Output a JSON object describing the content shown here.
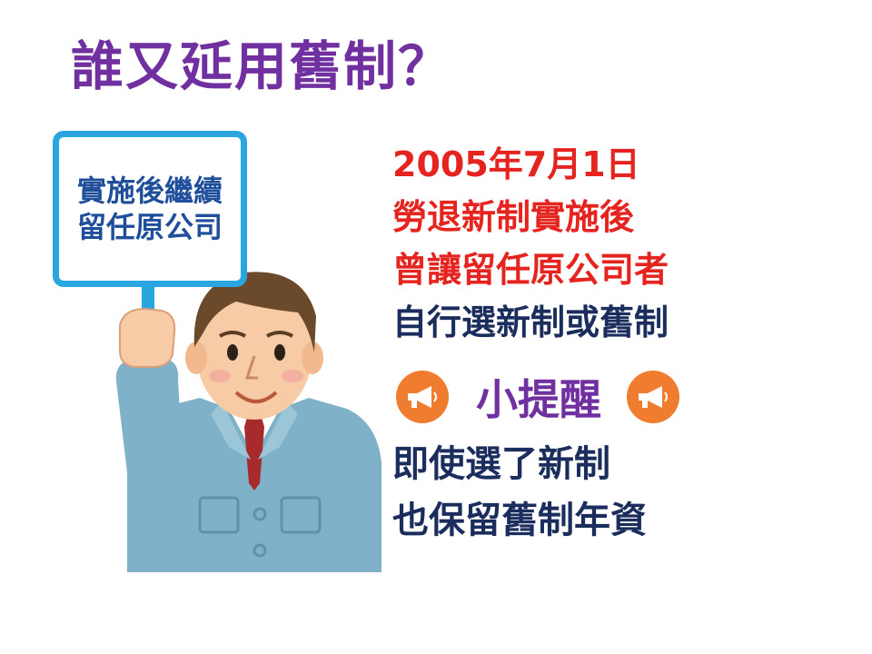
{
  "title": "誰又延用舊制？",
  "sign": {
    "line1": "實施後繼續",
    "line2": "留任原公司"
  },
  "main_text": {
    "line1": "2005年7月1日",
    "line2": "勞退新制實施後",
    "line3": "曾讓留任原公司者",
    "line4": "自行選新制或舊制"
  },
  "reminder": {
    "label": "小提醒",
    "icon": "megaphone-icon",
    "icon_color": "#f07d2f"
  },
  "bottom_text": {
    "line1": "即使選了新制",
    "line2": "也保留舊制年資"
  },
  "colors": {
    "title": "#7030a0",
    "highlight": "#e52420",
    "body": "#1b2d5c",
    "sign_border": "#29a6df",
    "sign_text": "#1f4e9b"
  }
}
